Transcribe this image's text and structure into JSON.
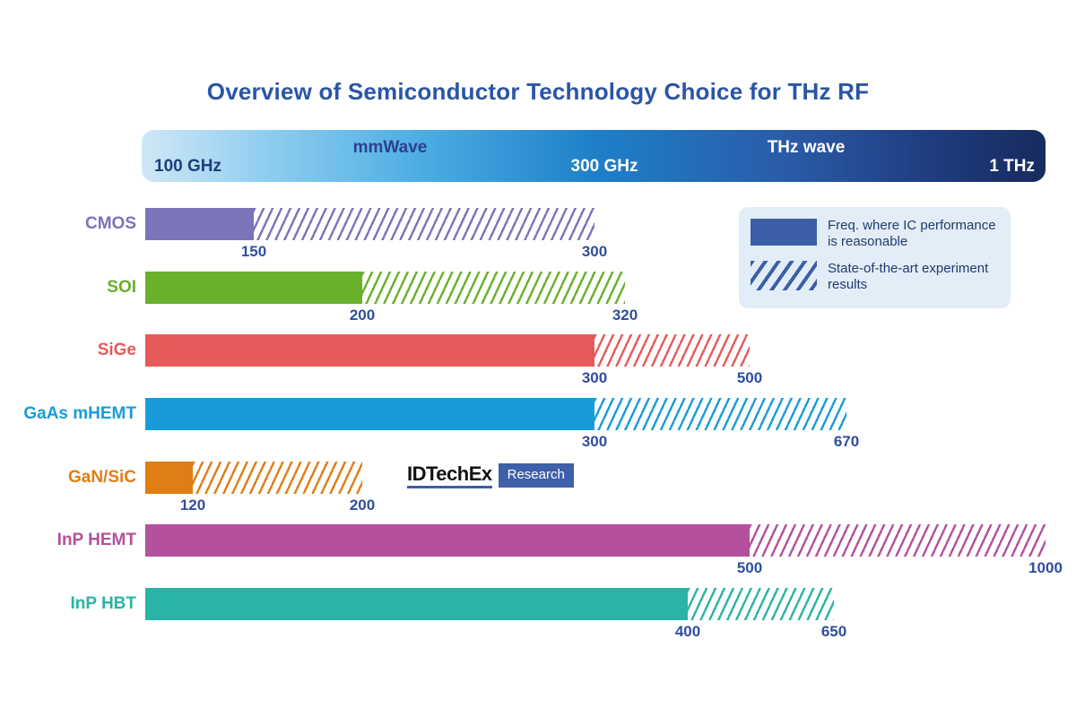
{
  "title": "Overview of Semiconductor Technology Choice for THz RF",
  "colors": {
    "title": "#2A55A7",
    "number_labels": "#2F4E9D",
    "legend_swatch": "#3B5FA7",
    "legend_background": "#E3EDF8",
    "spectrum_gradient": [
      "#CFE7F7",
      "#1E80C9",
      "#172B5E"
    ]
  },
  "spectrum": {
    "start": "100 GHz",
    "band1": "mmWave",
    "mid": "300 GHz",
    "band2": "THz wave",
    "end": "1 THz"
  },
  "legend": {
    "items": [
      {
        "type": "solid",
        "label": "Freq. where IC performance is reasonable"
      },
      {
        "type": "hatch",
        "label": "State-of-the-art experiment results"
      }
    ]
  },
  "logo": {
    "brand": "IDTechEx",
    "suffix": "Research"
  },
  "chart_data": {
    "type": "bar",
    "orientation": "horizontal",
    "unit": "GHz",
    "axis": {
      "min_ghz": 100,
      "mid_ghz": 300,
      "max_ghz": 1000,
      "grid": false
    },
    "series_meaning": {
      "solid": "Freq. where IC performance is reasonable",
      "hatch": "State-of-the-art experiment results"
    },
    "rows": [
      {
        "label": "CMOS",
        "color": "#7B74B8",
        "ic_reasonable_ghz": 150,
        "experiment_ghz": 300
      },
      {
        "label": "SOI",
        "color": "#69B02B",
        "ic_reasonable_ghz": 200,
        "experiment_ghz": 320
      },
      {
        "label": "SiGe",
        "color": "#E75A5B",
        "ic_reasonable_ghz": 300,
        "experiment_ghz": 500
      },
      {
        "label": "GaAs mHEMT",
        "color": "#189CD9",
        "ic_reasonable_ghz": 300,
        "experiment_ghz": 670
      },
      {
        "label": "GaN/SiC",
        "color": "#E07D15",
        "ic_reasonable_ghz": 120,
        "experiment_ghz": 200
      },
      {
        "label": "InP HEMT",
        "color": "#B4509E",
        "ic_reasonable_ghz": 500,
        "experiment_ghz": 1000
      },
      {
        "label": "InP HBT",
        "color": "#2AB3A6",
        "ic_reasonable_ghz": 400,
        "experiment_ghz": 650
      }
    ]
  }
}
